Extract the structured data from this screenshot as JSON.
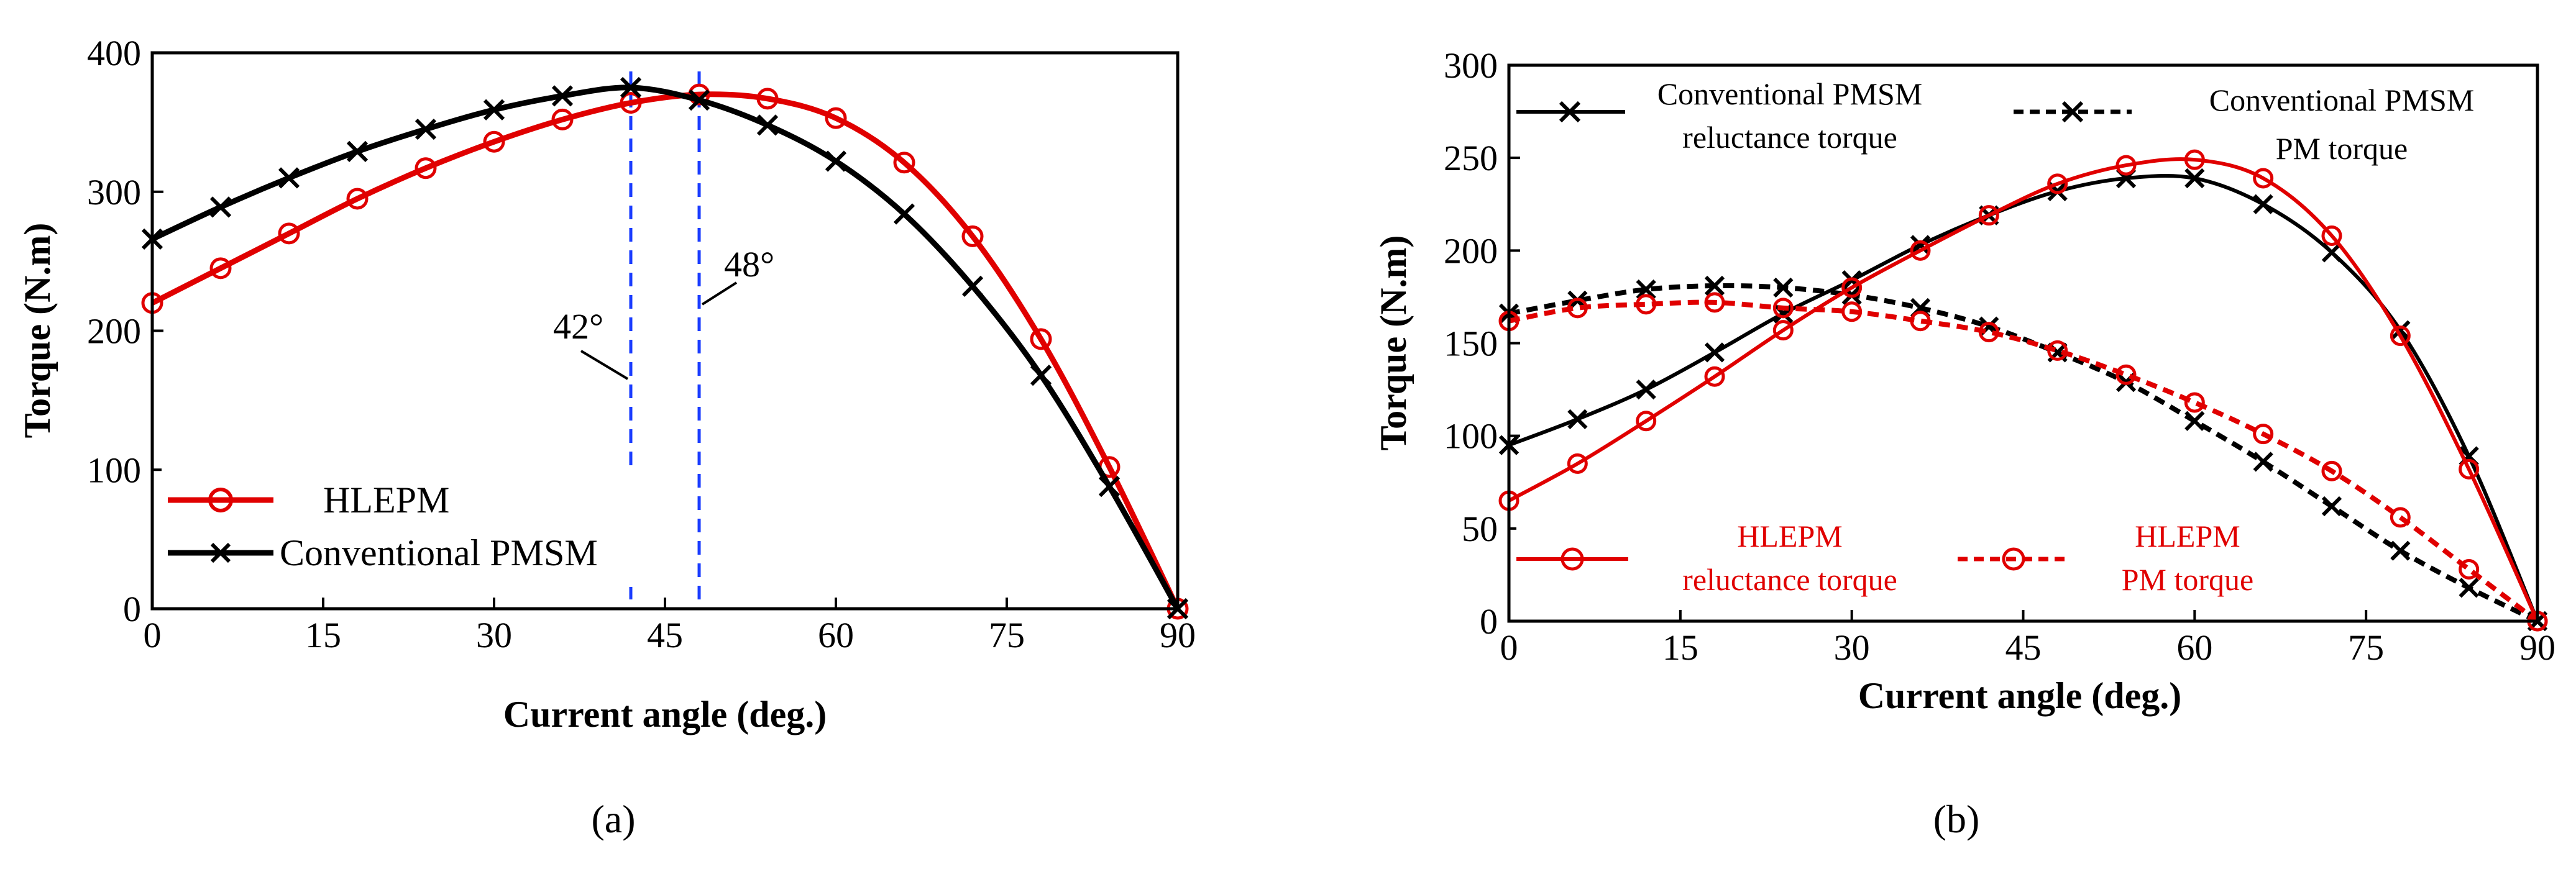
{
  "chart_data": [
    {
      "type": "line",
      "panel": "a",
      "caption": "(a)",
      "xlabel": "Current angle (deg.)",
      "ylabel": "Torque (N.m)",
      "xlim": [
        0,
        90
      ],
      "ylim": [
        0,
        400
      ],
      "xticks": [
        "0",
        "15",
        "30",
        "45",
        "60",
        "75",
        "90"
      ],
      "yticks": [
        "0",
        "100",
        "200",
        "300",
        "400"
      ],
      "x": [
        0,
        6,
        12,
        18,
        24,
        30,
        36,
        42,
        48,
        54,
        60,
        66,
        72,
        78,
        84,
        90
      ],
      "series": [
        {
          "name": "HLEPM",
          "color": "#e00000",
          "marker": "circle",
          "dashed": false,
          "values": [
            220,
            245,
            270,
            295,
            317,
            336,
            352,
            364,
            370,
            367,
            353,
            321,
            268,
            194,
            102,
            0
          ]
        },
        {
          "name": "Conventional PMSM",
          "color": "#000000",
          "marker": "x",
          "dashed": false,
          "values": [
            266,
            289,
            310,
            329,
            345,
            359,
            369,
            375,
            366,
            348,
            322,
            284,
            232,
            168,
            88,
            0
          ]
        }
      ],
      "annotations": [
        {
          "label": "42°",
          "x": 42
        },
        {
          "label": "48°",
          "x": 48
        }
      ]
    },
    {
      "type": "line",
      "panel": "b",
      "caption": "(b)",
      "xlabel": "Current angle (deg.)",
      "ylabel": "Torque (N.m)",
      "xlim": [
        0,
        90
      ],
      "ylim": [
        0,
        300
      ],
      "xticks": [
        "0",
        "15",
        "30",
        "45",
        "60",
        "75",
        "90"
      ],
      "yticks": [
        "0",
        "50",
        "100",
        "150",
        "200",
        "250",
        "300"
      ],
      "x": [
        0,
        6,
        12,
        18,
        24,
        30,
        36,
        42,
        48,
        54,
        60,
        66,
        72,
        78,
        84,
        90
      ],
      "series": [
        {
          "name": "Conventional PMSM reluctance torque",
          "legend_lines": [
            "Conventional PMSM",
            "reluctance torque"
          ],
          "color": "#000000",
          "marker": "x",
          "dashed": false,
          "values": [
            95,
            109,
            125,
            145,
            166,
            184,
            203,
            219,
            232,
            239,
            239,
            225,
            199,
            157,
            89,
            0
          ]
        },
        {
          "name": "Conventional PMSM PM torque",
          "legend_lines": [
            "Conventional PMSM",
            "PM torque"
          ],
          "color": "#000000",
          "marker": "x",
          "dashed": true,
          "values": [
            166,
            173,
            179,
            181,
            180,
            176,
            169,
            159,
            145,
            129,
            108,
            86,
            62,
            38,
            18,
            0
          ]
        },
        {
          "name": "HLEPM reluctance torque",
          "legend_lines": [
            "HLEPM",
            "reluctance torque"
          ],
          "color": "#e00000",
          "marker": "circle",
          "dashed": false,
          "values": [
            65,
            85,
            108,
            132,
            157,
            180,
            200,
            219,
            236,
            246,
            249,
            239,
            208,
            154,
            82,
            0
          ]
        },
        {
          "name": "HLEPM PM torque",
          "legend_lines": [
            "HLEPM",
            "PM torque"
          ],
          "color": "#e00000",
          "marker": "circle",
          "dashed": true,
          "values": [
            162,
            169,
            171,
            172,
            169,
            167,
            162,
            156,
            146,
            133,
            118,
            101,
            81,
            56,
            28,
            0
          ]
        }
      ]
    }
  ]
}
